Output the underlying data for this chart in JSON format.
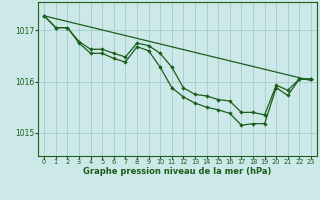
{
  "xlabel": "Graphe pression niveau de la mer (hPa)",
  "bg_color": "#cce8e8",
  "grid_color": "#aad0d0",
  "line_color": "#1a5e1a",
  "xticks": [
    0,
    1,
    2,
    3,
    4,
    5,
    6,
    7,
    8,
    9,
    10,
    11,
    12,
    13,
    14,
    15,
    16,
    17,
    18,
    19,
    20,
    21,
    22,
    23
  ],
  "yticks": [
    1015,
    1016,
    1017
  ],
  "ylim": [
    1014.55,
    1017.55
  ],
  "xlim": [
    -0.5,
    23.5
  ],
  "line1_x": [
    0,
    23
  ],
  "line1_y": [
    1017.28,
    1016.02
  ],
  "line2_x": [
    0,
    1,
    2,
    3,
    4,
    5,
    6,
    7,
    8,
    9,
    10,
    11,
    12,
    13,
    14,
    15,
    16,
    17,
    18,
    19,
    20,
    21,
    22,
    23
  ],
  "line2_y": [
    1017.28,
    1017.05,
    1017.05,
    1016.78,
    1016.63,
    1016.63,
    1016.55,
    1016.48,
    1016.75,
    1016.7,
    1016.55,
    1016.28,
    1015.88,
    1015.75,
    1015.72,
    1015.65,
    1015.62,
    1015.4,
    1015.4,
    1015.35,
    1015.93,
    1015.83,
    1016.05,
    1016.05
  ],
  "line3_x": [
    0,
    1,
    2,
    3,
    4,
    5,
    6,
    7,
    8,
    9,
    10,
    11,
    12,
    13,
    14,
    15,
    16,
    17,
    18,
    19,
    20,
    21,
    22,
    23
  ],
  "line3_y": [
    1017.28,
    1017.05,
    1017.05,
    1016.75,
    1016.55,
    1016.55,
    1016.45,
    1016.38,
    1016.68,
    1016.6,
    1016.28,
    1015.88,
    1015.7,
    1015.58,
    1015.5,
    1015.45,
    1015.38,
    1015.15,
    1015.18,
    1015.18,
    1015.88,
    1015.73,
    1016.05,
    1016.05
  ]
}
